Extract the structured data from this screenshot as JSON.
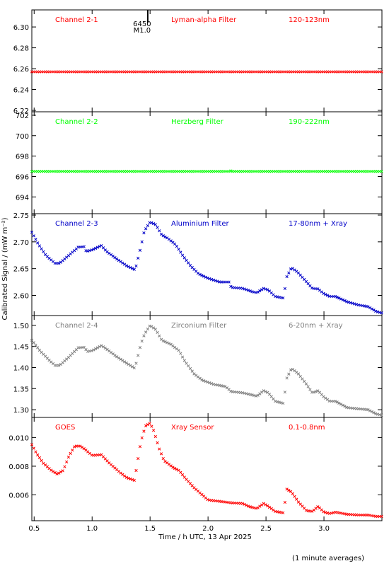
{
  "chart_data": {
    "type": "scatter",
    "xlabel": "Time / h UTC, 13 Apr 2025",
    "ylabel": "Calibrated Signal / (mW m⁻²)",
    "footnote": "(1 minute averages)",
    "xlim": [
      0.48,
      3.5
    ],
    "x_ticks": [
      "0.5",
      "1.0",
      "1.5",
      "2.0",
      "2.5",
      "3.0"
    ],
    "flare_marker": {
      "x": 1.48,
      "labels": [
        "6450",
        "M1.0"
      ]
    },
    "panels": [
      {
        "id": "ch21",
        "channel": "Channel 2-1",
        "filter": "Lyman-alpha Filter",
        "band": "120-123nm",
        "color": "#ff0000",
        "ylim": [
          6.22,
          6.315
        ],
        "y_ticks": [
          "6.22",
          "6.24",
          "6.26",
          "6.28",
          "6.30"
        ],
        "kind": "flat",
        "points": [
          [
            0.48,
            6.257
          ],
          [
            3.5,
            6.257
          ]
        ]
      },
      {
        "id": "ch22",
        "channel": "Channel 2-2",
        "filter": "Herzberg Filter",
        "band": "190-222nm",
        "color": "#00ff00",
        "ylim": [
          692.5,
          702.2
        ],
        "y_ticks": [
          "694",
          "696",
          "698",
          "700",
          "702"
        ],
        "kind": "flat",
        "points": [
          [
            0.48,
            696.5
          ],
          [
            2.18,
            696.5
          ],
          [
            2.19,
            696.65
          ],
          [
            2.2,
            696.5
          ],
          [
            3.5,
            696.5
          ]
        ]
      },
      {
        "id": "ch23",
        "channel": "Channel 2-3",
        "filter": "Aluminium Filter",
        "band": "17-80nm + Xray",
        "color": "#0000c8",
        "ylim": [
          2.565,
          2.75
        ],
        "y_ticks": [
          "2.60",
          "2.65",
          "2.70",
          "2.75"
        ],
        "kind": "series",
        "points": [
          [
            0.48,
            2.718
          ],
          [
            0.53,
            2.698
          ],
          [
            0.6,
            2.675
          ],
          [
            0.68,
            2.66
          ],
          [
            0.72,
            2.66
          ],
          [
            0.8,
            2.675
          ],
          [
            0.88,
            2.69
          ],
          [
            0.93,
            2.691
          ],
          [
            0.95,
            2.682
          ],
          [
            1.0,
            2.685
          ],
          [
            1.08,
            2.693
          ],
          [
            1.12,
            2.683
          ],
          [
            1.2,
            2.67
          ],
          [
            1.3,
            2.655
          ],
          [
            1.37,
            2.648
          ],
          [
            1.38,
            2.655
          ],
          [
            1.42,
            2.69
          ],
          [
            1.45,
            2.72
          ],
          [
            1.5,
            2.737
          ],
          [
            1.55,
            2.732
          ],
          [
            1.6,
            2.713
          ],
          [
            1.65,
            2.707
          ],
          [
            1.72,
            2.695
          ],
          [
            1.78,
            2.675
          ],
          [
            1.85,
            2.655
          ],
          [
            1.92,
            2.64
          ],
          [
            2.0,
            2.632
          ],
          [
            2.1,
            2.625
          ],
          [
            2.18,
            2.625
          ],
          [
            2.2,
            2.615
          ],
          [
            2.3,
            2.613
          ],
          [
            2.38,
            2.607
          ],
          [
            2.42,
            2.605
          ],
          [
            2.48,
            2.613
          ],
          [
            2.52,
            2.61
          ],
          [
            2.58,
            2.598
          ],
          [
            2.65,
            2.595
          ],
          [
            2.68,
            2.635
          ],
          [
            2.72,
            2.652
          ],
          [
            2.78,
            2.642
          ],
          [
            2.85,
            2.625
          ],
          [
            2.9,
            2.613
          ],
          [
            2.95,
            2.612
          ],
          [
            3.0,
            2.603
          ],
          [
            3.05,
            2.598
          ],
          [
            3.1,
            2.598
          ],
          [
            3.2,
            2.588
          ],
          [
            3.3,
            2.582
          ],
          [
            3.38,
            2.579
          ],
          [
            3.45,
            2.57
          ],
          [
            3.5,
            2.567
          ]
        ]
      },
      {
        "id": "ch24",
        "channel": "Channel 2-4",
        "filter": "Zirconium Filter",
        "band": "6-20nm + Xray",
        "color": "#808080",
        "ylim": [
          1.285,
          1.52
        ],
        "y_ticks": [
          "1.30",
          "1.35",
          "1.40",
          "1.45",
          "1.50"
        ],
        "kind": "series",
        "points": [
          [
            0.48,
            1.465
          ],
          [
            0.55,
            1.44
          ],
          [
            0.62,
            1.42
          ],
          [
            0.68,
            1.405
          ],
          [
            0.72,
            1.405
          ],
          [
            0.8,
            1.425
          ],
          [
            0.88,
            1.447
          ],
          [
            0.93,
            1.448
          ],
          [
            0.96,
            1.438
          ],
          [
            1.0,
            1.44
          ],
          [
            1.08,
            1.452
          ],
          [
            1.12,
            1.445
          ],
          [
            1.2,
            1.428
          ],
          [
            1.3,
            1.41
          ],
          [
            1.37,
            1.398
          ],
          [
            1.38,
            1.41
          ],
          [
            1.42,
            1.455
          ],
          [
            1.45,
            1.478
          ],
          [
            1.5,
            1.5
          ],
          [
            1.55,
            1.49
          ],
          [
            1.6,
            1.465
          ],
          [
            1.68,
            1.455
          ],
          [
            1.75,
            1.44
          ],
          [
            1.8,
            1.415
          ],
          [
            1.88,
            1.385
          ],
          [
            1.95,
            1.37
          ],
          [
            2.05,
            1.36
          ],
          [
            2.15,
            1.355
          ],
          [
            2.2,
            1.343
          ],
          [
            2.3,
            1.34
          ],
          [
            2.38,
            1.335
          ],
          [
            2.42,
            1.332
          ],
          [
            2.48,
            1.345
          ],
          [
            2.52,
            1.34
          ],
          [
            2.58,
            1.32
          ],
          [
            2.65,
            1.315
          ],
          [
            2.68,
            1.375
          ],
          [
            2.72,
            1.398
          ],
          [
            2.78,
            1.385
          ],
          [
            2.85,
            1.36
          ],
          [
            2.9,
            1.34
          ],
          [
            2.95,
            1.345
          ],
          [
            3.0,
            1.33
          ],
          [
            3.05,
            1.32
          ],
          [
            3.1,
            1.32
          ],
          [
            3.2,
            1.305
          ],
          [
            3.3,
            1.302
          ],
          [
            3.38,
            1.3
          ],
          [
            3.45,
            1.29
          ],
          [
            3.5,
            1.287
          ]
        ]
      },
      {
        "id": "goes",
        "channel": "GOES",
        "filter": "Xray Sensor",
        "band": "0.1-0.8nm",
        "color": "#ff0000",
        "ylim": [
          0.0043,
          0.0113
        ],
        "y_ticks": [
          "0.006",
          "0.008",
          "0.010"
        ],
        "kind": "series",
        "points": [
          [
            0.48,
            0.0095
          ],
          [
            0.52,
            0.0089
          ],
          [
            0.58,
            0.0082
          ],
          [
            0.65,
            0.0077
          ],
          [
            0.7,
            0.00745
          ],
          [
            0.75,
            0.0077
          ],
          [
            0.8,
            0.0087
          ],
          [
            0.85,
            0.0094
          ],
          [
            0.9,
            0.0094
          ],
          [
            0.95,
            0.0091
          ],
          [
            1.0,
            0.00875
          ],
          [
            1.08,
            0.0088
          ],
          [
            1.15,
            0.0082
          ],
          [
            1.25,
            0.0075
          ],
          [
            1.3,
            0.0072
          ],
          [
            1.37,
            0.007
          ],
          [
            1.38,
            0.0077
          ],
          [
            1.42,
            0.0097
          ],
          [
            1.46,
            0.0108
          ],
          [
            1.5,
            0.011
          ],
          [
            1.53,
            0.0105
          ],
          [
            1.58,
            0.0092
          ],
          [
            1.62,
            0.0084
          ],
          [
            1.7,
            0.0079
          ],
          [
            1.75,
            0.0077
          ],
          [
            1.8,
            0.0072
          ],
          [
            1.88,
            0.0065
          ],
          [
            1.95,
            0.006
          ],
          [
            2.0,
            0.00565
          ],
          [
            2.1,
            0.00555
          ],
          [
            2.2,
            0.00545
          ],
          [
            2.3,
            0.0054
          ],
          [
            2.35,
            0.0052
          ],
          [
            2.42,
            0.00505
          ],
          [
            2.48,
            0.0054
          ],
          [
            2.52,
            0.0052
          ],
          [
            2.58,
            0.00485
          ],
          [
            2.65,
            0.00475
          ],
          [
            2.68,
            0.0064
          ],
          [
            2.72,
            0.0062
          ],
          [
            2.78,
            0.0055
          ],
          [
            2.85,
            0.0049
          ],
          [
            2.9,
            0.00485
          ],
          [
            2.95,
            0.0052
          ],
          [
            3.0,
            0.0048
          ],
          [
            3.05,
            0.0047
          ],
          [
            3.1,
            0.0048
          ],
          [
            3.2,
            0.00465
          ],
          [
            3.3,
            0.0046
          ],
          [
            3.38,
            0.0046
          ],
          [
            3.45,
            0.0045
          ],
          [
            3.5,
            0.0045
          ]
        ]
      }
    ]
  }
}
